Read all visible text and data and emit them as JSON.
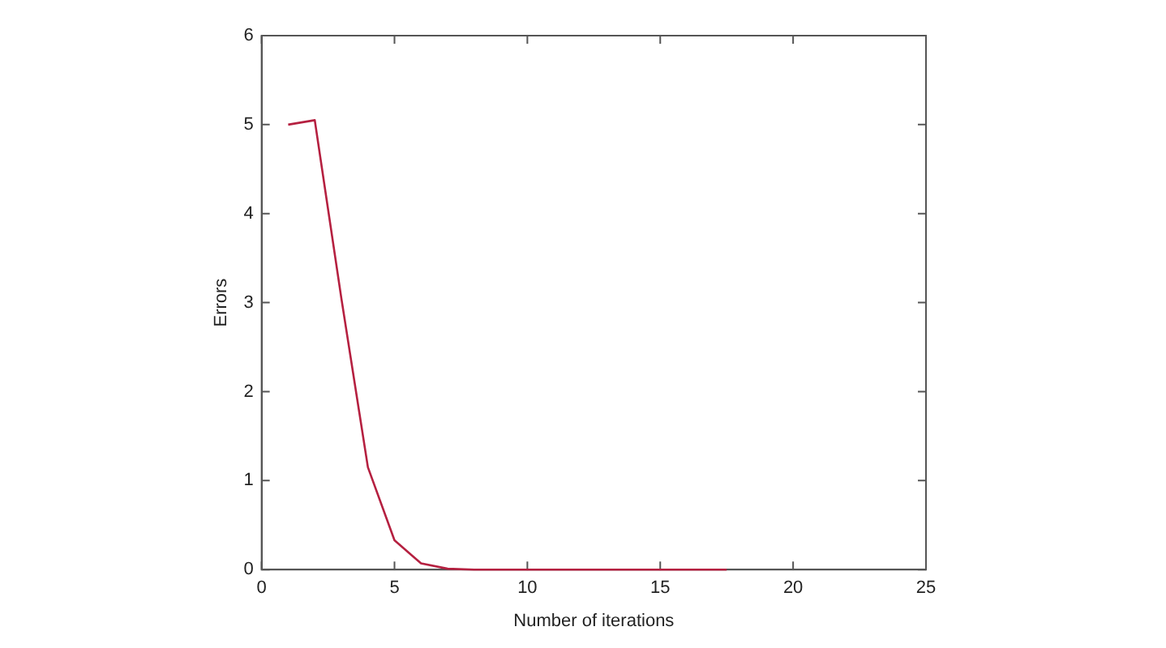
{
  "chart_data": {
    "type": "line",
    "xlabel": "Number of iterations",
    "ylabel": "Errors",
    "x": [
      1,
      2,
      3,
      4,
      5,
      6,
      7,
      8,
      9,
      10,
      11,
      12,
      13,
      14,
      15,
      16,
      17,
      17.5
    ],
    "series": [
      {
        "color": "#b52040",
        "values": [
          5.0,
          5.05,
          3.05,
          1.15,
          0.33,
          0.07,
          0.01,
          0,
          0,
          0,
          0,
          0,
          0,
          0,
          0,
          0,
          0,
          0
        ]
      }
    ],
    "xlim": [
      0,
      25
    ],
    "xticks": [
      0,
      5,
      10,
      15,
      20,
      25
    ],
    "ylim": [
      0,
      6
    ],
    "yticks": [
      0,
      1,
      2,
      3,
      4,
      5,
      6
    ],
    "grid": false,
    "legend": false,
    "marker": "none",
    "line_style": "solid"
  }
}
